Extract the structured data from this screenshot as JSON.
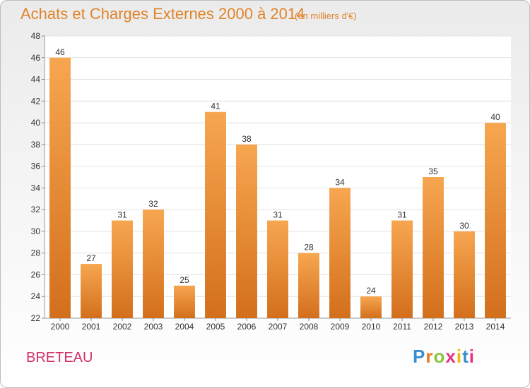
{
  "header": {
    "title": "Achats et Charges Externes 2000 à 2014",
    "subtitle": "(en milliers d'€)"
  },
  "footer": {
    "town": "BRETEAU",
    "brand": "Proxiti"
  },
  "colors": {
    "bar_top": "#f7a650",
    "bar_bottom": "#d36f1c",
    "title": "#e0842a",
    "town": "#d0306a"
  },
  "chart_data": {
    "type": "bar",
    "categories": [
      "2000",
      "2001",
      "2002",
      "2003",
      "2004",
      "2005",
      "2006",
      "2007",
      "2008",
      "2009",
      "2010",
      "2011",
      "2012",
      "2013",
      "2014"
    ],
    "values": [
      46,
      27,
      31,
      32,
      25,
      41,
      38,
      31,
      28,
      34,
      24,
      31,
      35,
      30,
      40
    ],
    "ylim": [
      22,
      48
    ],
    "yticks": [
      22,
      24,
      26,
      28,
      30,
      32,
      34,
      36,
      38,
      40,
      42,
      44,
      46,
      48
    ],
    "grid": true
  }
}
